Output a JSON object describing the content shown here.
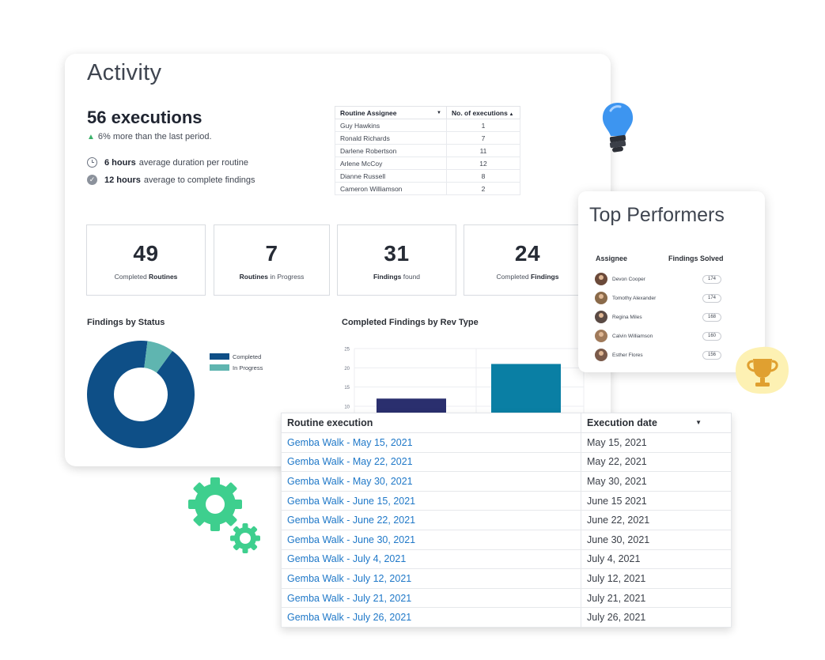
{
  "activity": {
    "title": "Activity",
    "executions": "56 executions",
    "trend": "6% more than the last period.",
    "stats": [
      {
        "bold": "6 hours",
        "text": "average duration per routine",
        "icon": "clock-icon"
      },
      {
        "bold": "12 hours",
        "text": "average to complete findings",
        "icon": "check-circle-icon"
      }
    ]
  },
  "assignee_table": {
    "headers": [
      "Routine Assignee",
      "No. of executions"
    ],
    "rows": [
      [
        "Guy Hawkins",
        "1"
      ],
      [
        "Ronald Richards",
        "7"
      ],
      [
        "Darlene Robertson",
        "11"
      ],
      [
        "Arlene McCoy",
        "12"
      ],
      [
        "Dianne Russell",
        "8"
      ],
      [
        "Cameron Williamson",
        "2"
      ]
    ]
  },
  "kpis": [
    {
      "value": "49",
      "pre": "Completed ",
      "bold": "Routines",
      "post": ""
    },
    {
      "value": "7",
      "pre": "",
      "bold": "Routines",
      "post": " in Progress"
    },
    {
      "value": "31",
      "pre": "",
      "bold": "Findings",
      "post": " found"
    },
    {
      "value": "24",
      "pre": "Completed ",
      "bold": "Findings",
      "post": ""
    }
  ],
  "findings_by_status": {
    "title": "Findings by Status",
    "legend": [
      {
        "label": "Completed",
        "color": "#0e4f87"
      },
      {
        "label": "In Progress",
        "color": "#5fb5b0"
      }
    ]
  },
  "chart_data": [
    {
      "type": "pie",
      "title": "Findings by Status",
      "categories": [
        "Completed",
        "In Progress"
      ],
      "values": [
        92,
        8
      ]
    },
    {
      "type": "bar",
      "title": "Completed Findings by Rev Type",
      "categories": [
        "",
        ""
      ],
      "values": [
        12,
        21
      ],
      "colors": [
        "#2a2f6e",
        "#0a7fa4"
      ],
      "yticks": [
        10,
        15,
        20,
        25
      ],
      "ylim": [
        5,
        25
      ]
    }
  ],
  "bar_chart_title": "Completed Findings by Rev Type",
  "executions_table": {
    "headers": [
      "Routine execution",
      "Execution date"
    ],
    "rows": [
      [
        "Gemba Walk - May 15, 2021",
        "May 15, 2021"
      ],
      [
        "Gemba Walk - May 22, 2021",
        "May 22, 2021"
      ],
      [
        "Gemba Walk - May 30, 2021",
        "May 30, 2021"
      ],
      [
        "Gemba Walk - June 15, 2021",
        "June 15 2021"
      ],
      [
        "Gemba Walk - June 22, 2021",
        "June 22, 2021"
      ],
      [
        "Gemba Walk - June 30, 2021",
        "June 30, 2021"
      ],
      [
        "Gemba Walk - July 4, 2021",
        "July 4, 2021"
      ],
      [
        "Gemba Walk - July 12, 2021",
        "July 12, 2021"
      ],
      [
        "Gemba Walk - July 21, 2021",
        "July 21, 2021"
      ],
      [
        "Gemba Walk - July 26, 2021",
        "July 26, 2021"
      ]
    ]
  },
  "top_performers": {
    "title": "Top Performers",
    "headers": [
      "Assignee",
      "Findings Solved"
    ],
    "rows": [
      {
        "name": "Devon Cooper",
        "value": "174"
      },
      {
        "name": "Tomothy Alexander",
        "value": "174"
      },
      {
        "name": "Regina Miles",
        "value": "168"
      },
      {
        "name": "Calvin Williamson",
        "value": "160"
      },
      {
        "name": "Esther Flores",
        "value": "156"
      }
    ]
  },
  "decorations": {
    "bulb": "lightbulb-icon",
    "gears": "gear-icon",
    "trophy": "trophy-icon",
    "colors": {
      "gear": "#3ecf8e",
      "bulb": "#3d95f0",
      "trophy_bg": "#fdf1b3",
      "trophy": "#e0a030"
    }
  }
}
